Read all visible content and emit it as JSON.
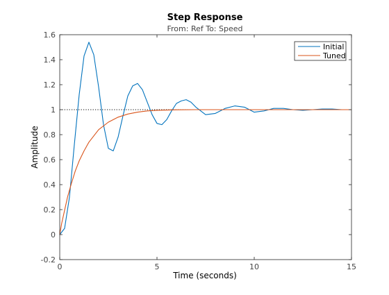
{
  "chart_data": {
    "type": "line",
    "title": "Step Response",
    "subtitle": "From: Ref  To: Speed",
    "xlabel": "Time (seconds)",
    "ylabel": "Amplitude",
    "xlim": [
      0,
      15
    ],
    "ylim": [
      -0.2,
      1.6
    ],
    "x_ticks": [
      0,
      5,
      10,
      15
    ],
    "y_ticks": [
      -0.2,
      0,
      0.2,
      0.4,
      0.6,
      0.8,
      1,
      1.2,
      1.4,
      1.6
    ],
    "x_tick_labels": [
      "0",
      "5",
      "10",
      "15"
    ],
    "y_tick_labels": [
      "-0.2",
      "0",
      "0.2",
      "0.4",
      "0.6",
      "0.8",
      "1",
      "1.2",
      "1.4",
      "1.6"
    ],
    "grid": false,
    "reference_line": {
      "y": 1,
      "style": "dotted",
      "color": "#000000"
    },
    "legend_position": "top-right",
    "series": [
      {
        "name": "Initial",
        "color": "#0072BD",
        "x": [
          0,
          0.25,
          0.5,
          0.75,
          1.0,
          1.25,
          1.5,
          1.75,
          2.0,
          2.25,
          2.5,
          2.75,
          3.0,
          3.25,
          3.5,
          3.75,
          4.0,
          4.25,
          4.5,
          4.75,
          5.0,
          5.25,
          5.5,
          5.75,
          6.0,
          6.25,
          6.5,
          6.75,
          7.0,
          7.5,
          8.0,
          8.5,
          9.0,
          9.5,
          10.0,
          10.5,
          11.0,
          11.5,
          12.0,
          12.5,
          13.0,
          13.5,
          14.0,
          14.5,
          15.0
        ],
        "y": [
          0,
          0.05,
          0.3,
          0.72,
          1.12,
          1.43,
          1.54,
          1.44,
          1.18,
          0.88,
          0.69,
          0.67,
          0.78,
          0.95,
          1.11,
          1.19,
          1.21,
          1.16,
          1.06,
          0.96,
          0.89,
          0.88,
          0.92,
          0.99,
          1.05,
          1.07,
          1.08,
          1.06,
          1.02,
          0.96,
          0.97,
          1.01,
          1.03,
          1.02,
          0.98,
          0.99,
          1.01,
          1.01,
          1.0,
          0.995,
          1.0,
          1.005,
          1.005,
          1.0,
          1.0
        ]
      },
      {
        "name": "Tuned",
        "color": "#D95319",
        "x": [
          0,
          0.1,
          0.2,
          0.4,
          0.6,
          0.8,
          1.0,
          1.25,
          1.5,
          1.75,
          2.0,
          2.5,
          3.0,
          3.5,
          4.0,
          4.5,
          5.0,
          5.5,
          6.0,
          7.0,
          8.0,
          10.0,
          12.0,
          15.0
        ],
        "y": [
          0,
          0.09,
          0.16,
          0.3,
          0.41,
          0.51,
          0.59,
          0.67,
          0.74,
          0.79,
          0.84,
          0.9,
          0.94,
          0.965,
          0.98,
          0.99,
          0.995,
          0.997,
          0.999,
          1.0,
          1.0,
          1.0,
          1.0,
          1.0
        ]
      }
    ]
  }
}
